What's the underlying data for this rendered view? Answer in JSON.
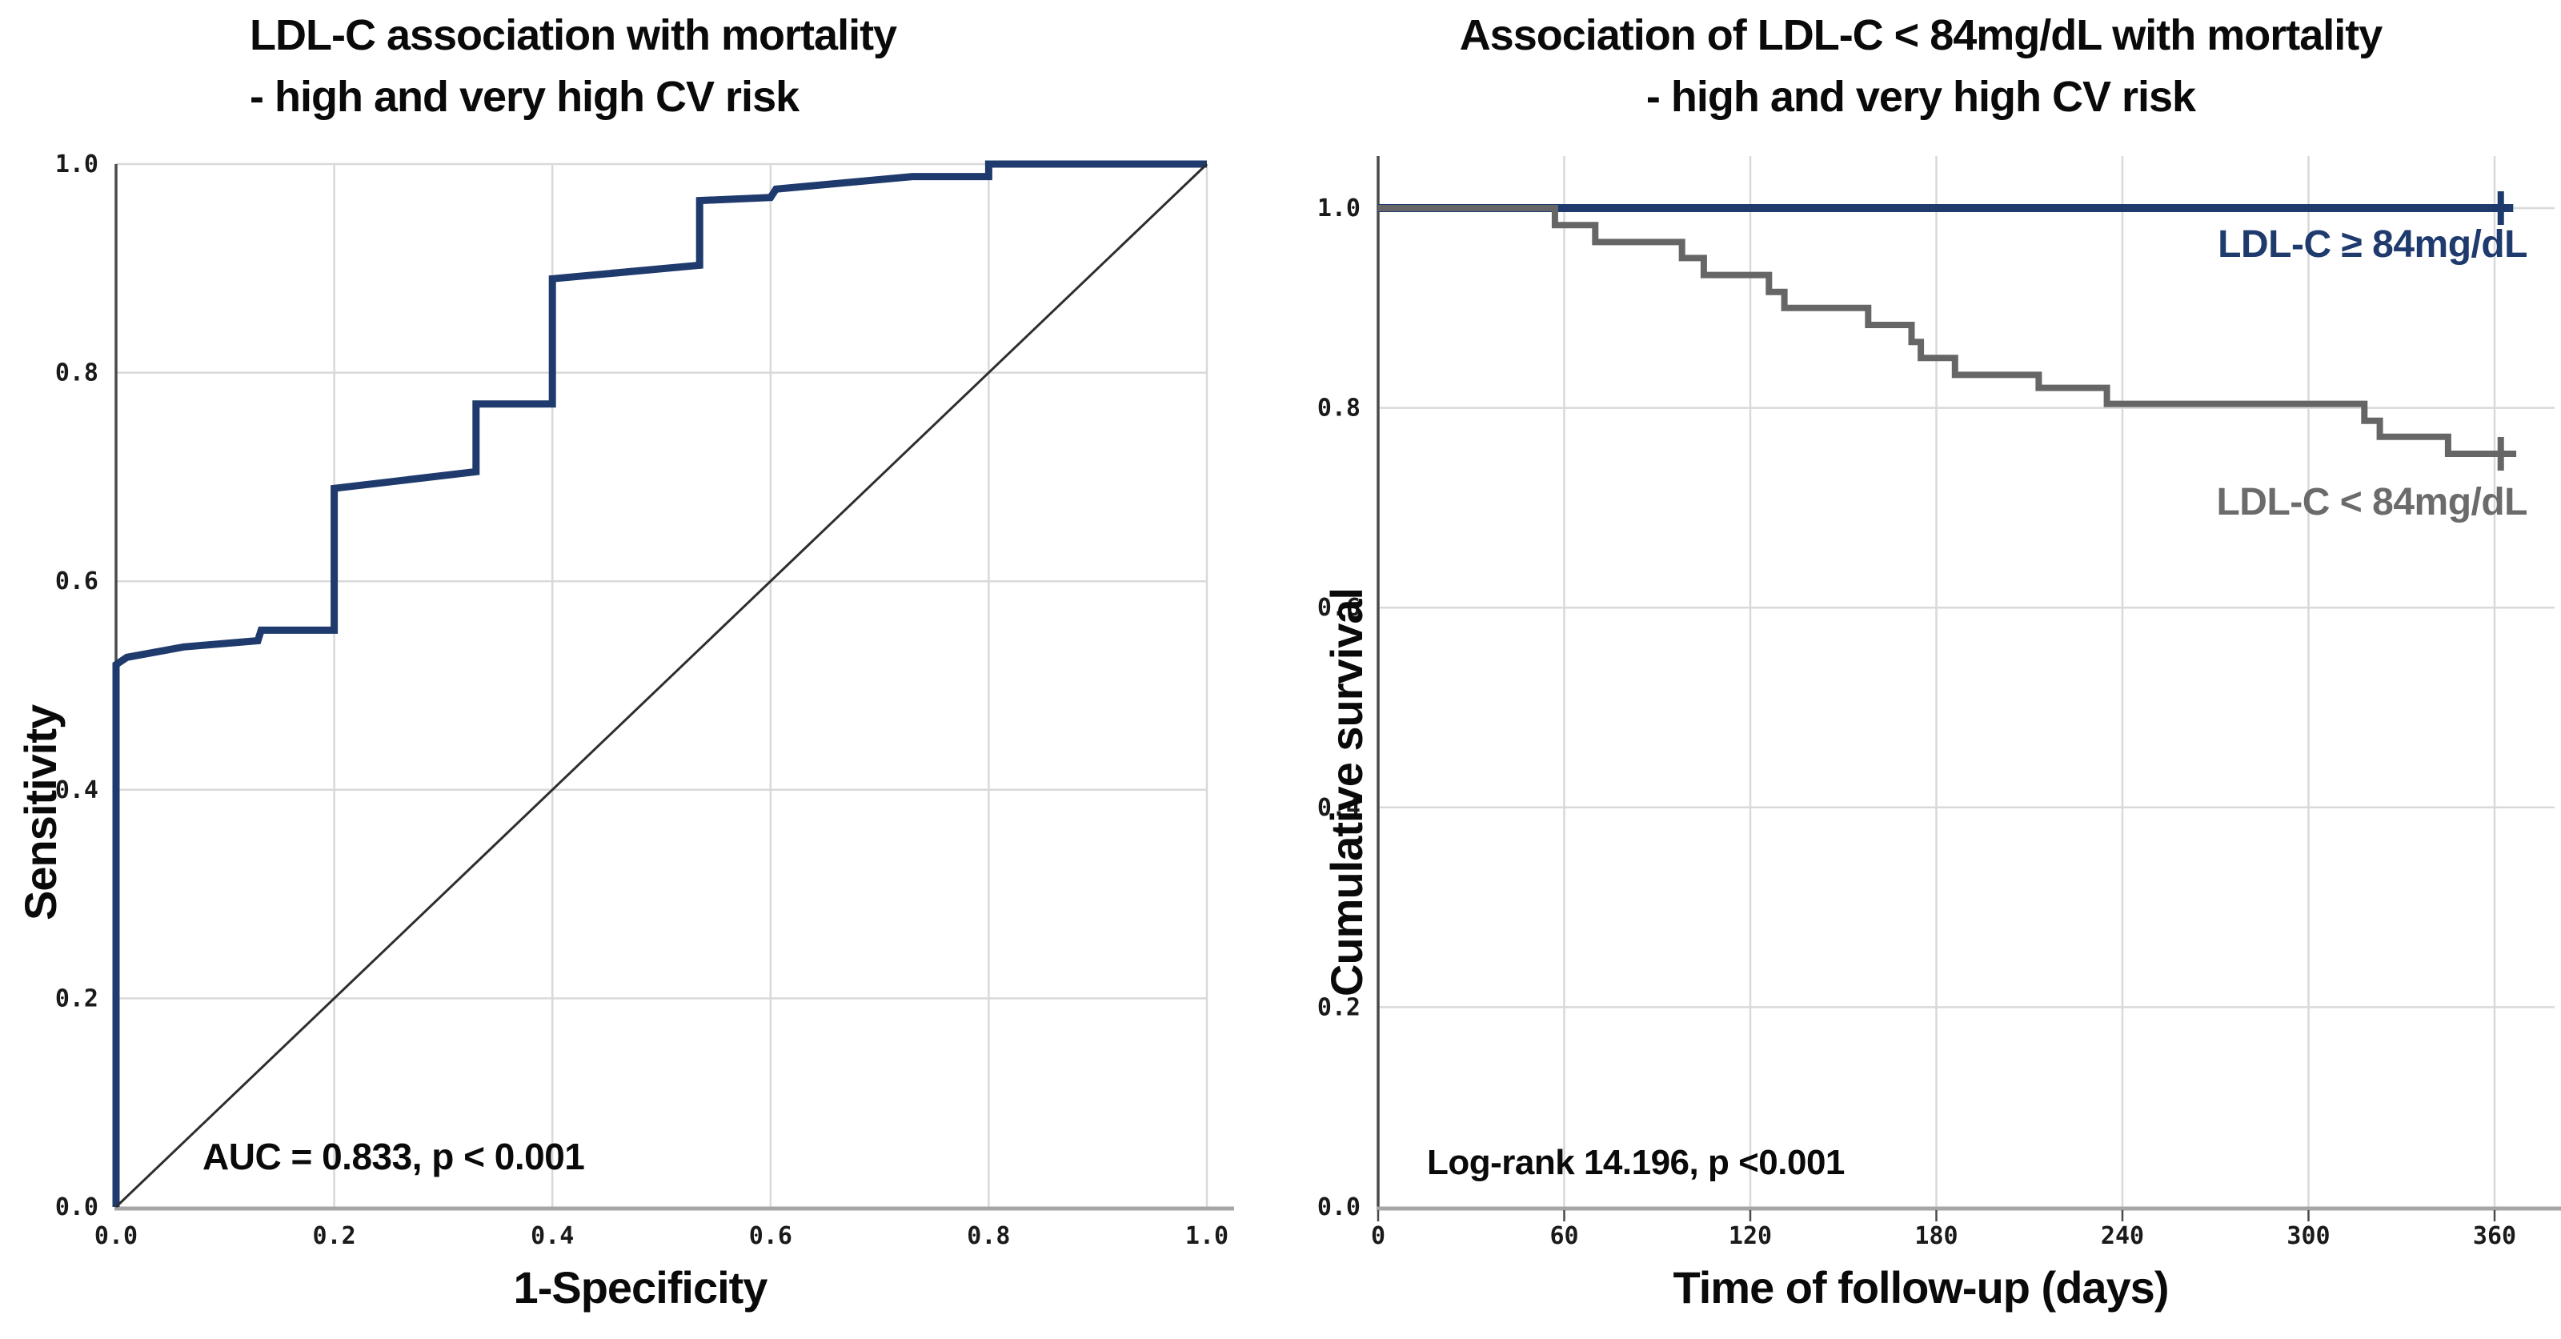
{
  "chart_data": [
    {
      "type": "line",
      "id": "roc-curve-chart",
      "title_lines": [
        "LDL-C association with mortality",
        "- high and very high CV risk"
      ],
      "xlabel": "1-Specificity",
      "ylabel": "Sensitivity",
      "xlim": [
        0,
        1
      ],
      "ylim": [
        0,
        1
      ],
      "x_ticks": [
        "0.0",
        "0.2",
        "0.4",
        "0.6",
        "0.8",
        "1.0"
      ],
      "y_ticks": [
        "0.0",
        "0.2",
        "0.4",
        "0.6",
        "0.8",
        "1.0"
      ],
      "grid": true,
      "legend_position": "none",
      "annotation": "AUC = 0.833, p < 0.001",
      "series": [
        {
          "name": "ROC curve",
          "color": "#1f3a6d",
          "width": 9,
          "points": [
            [
              0,
              0
            ],
            [
              0,
              0.52
            ],
            [
              0.01,
              0.527
            ],
            [
              0.062,
              0.537
            ],
            [
              0.13,
              0.543
            ],
            [
              0.133,
              0.553
            ],
            [
              0.2,
              0.553
            ],
            [
              0.2,
              0.689
            ],
            [
              0.33,
              0.705
            ],
            [
              0.33,
              0.77
            ],
            [
              0.4,
              0.77
            ],
            [
              0.4,
              0.89
            ],
            [
              0.535,
              0.903
            ],
            [
              0.535,
              0.965
            ],
            [
              0.6,
              0.968
            ],
            [
              0.605,
              0.976
            ],
            [
              0.73,
              0.988
            ],
            [
              0.8,
              0.988
            ],
            [
              0.8,
              1
            ],
            [
              1,
              1
            ]
          ],
          "censor_points": []
        },
        {
          "name": "Reference diagonal",
          "color": "#2e2e2e",
          "width": 3,
          "points": [
            [
              0,
              0
            ],
            [
              1,
              1
            ]
          ],
          "censor_points": []
        }
      ]
    },
    {
      "type": "line",
      "id": "kaplan-meier-chart",
      "title_lines": [
        "Association of LDL-C < 84mg/dL with mortality",
        "- high and very high CV risk"
      ],
      "xlabel": "Time of follow-up (days)",
      "ylabel": "Cumulative survival",
      "xlim": [
        0,
        360
      ],
      "ylim": [
        0,
        1
      ],
      "x_ticks": [
        "0",
        "60",
        "120",
        "180",
        "240",
        "300",
        "360"
      ],
      "y_ticks": [
        "0.0",
        "0.2",
        "0.4",
        "0.6",
        "0.8",
        "1.0"
      ],
      "grid": true,
      "legend_position": "inline-right",
      "annotation": "Log-rank 14.196, p <0.001",
      "series": [
        {
          "name": "LDL-C ≥ 84mg/dL",
          "color": "#1f3a6d",
          "width": 10,
          "points": [
            [
              0,
              1
            ],
            [
              366,
              1
            ]
          ],
          "censor_points": [
            [
              362,
              1
            ]
          ]
        },
        {
          "name": "LDL-C < 84mg/dL",
          "color": "#666666",
          "width": 8,
          "points": [
            [
              0,
              1
            ],
            [
              57,
              1
            ],
            [
              57,
              0.983
            ],
            [
              70,
              0.983
            ],
            [
              70,
              0.966
            ],
            [
              98,
              0.966
            ],
            [
              98,
              0.95
            ],
            [
              105,
              0.95
            ],
            [
              105,
              0.933
            ],
            [
              126,
              0.933
            ],
            [
              126,
              0.916
            ],
            [
              131,
              0.916
            ],
            [
              131,
              0.9
            ],
            [
              158,
              0.9
            ],
            [
              158,
              0.883
            ],
            [
              172,
              0.883
            ],
            [
              172,
              0.866
            ],
            [
              175,
              0.866
            ],
            [
              175,
              0.85
            ],
            [
              186,
              0.85
            ],
            [
              186,
              0.833
            ],
            [
              213,
              0.833
            ],
            [
              213,
              0.82
            ],
            [
              235,
              0.82
            ],
            [
              235,
              0.804
            ],
            [
              318,
              0.804
            ],
            [
              318,
              0.787
            ],
            [
              323,
              0.787
            ],
            [
              323,
              0.771
            ],
            [
              345,
              0.771
            ],
            [
              345,
              0.754
            ],
            [
              367,
              0.754
            ]
          ],
          "censor_points": [
            [
              362,
              0.754
            ]
          ]
        }
      ],
      "legend": [
        {
          "label": "LDL-C ≥ 84mg/dL",
          "color": "#1f3a6d"
        },
        {
          "label": "LDL-C < 84mg/dL",
          "color": "#6b6b6b"
        }
      ]
    }
  ],
  "style_colors": {
    "grid": "#d9d9d9",
    "axis_dark": "#4a4a4a",
    "axis_gray": "#a6a6a6",
    "tick_text": "#1a1a1a"
  }
}
